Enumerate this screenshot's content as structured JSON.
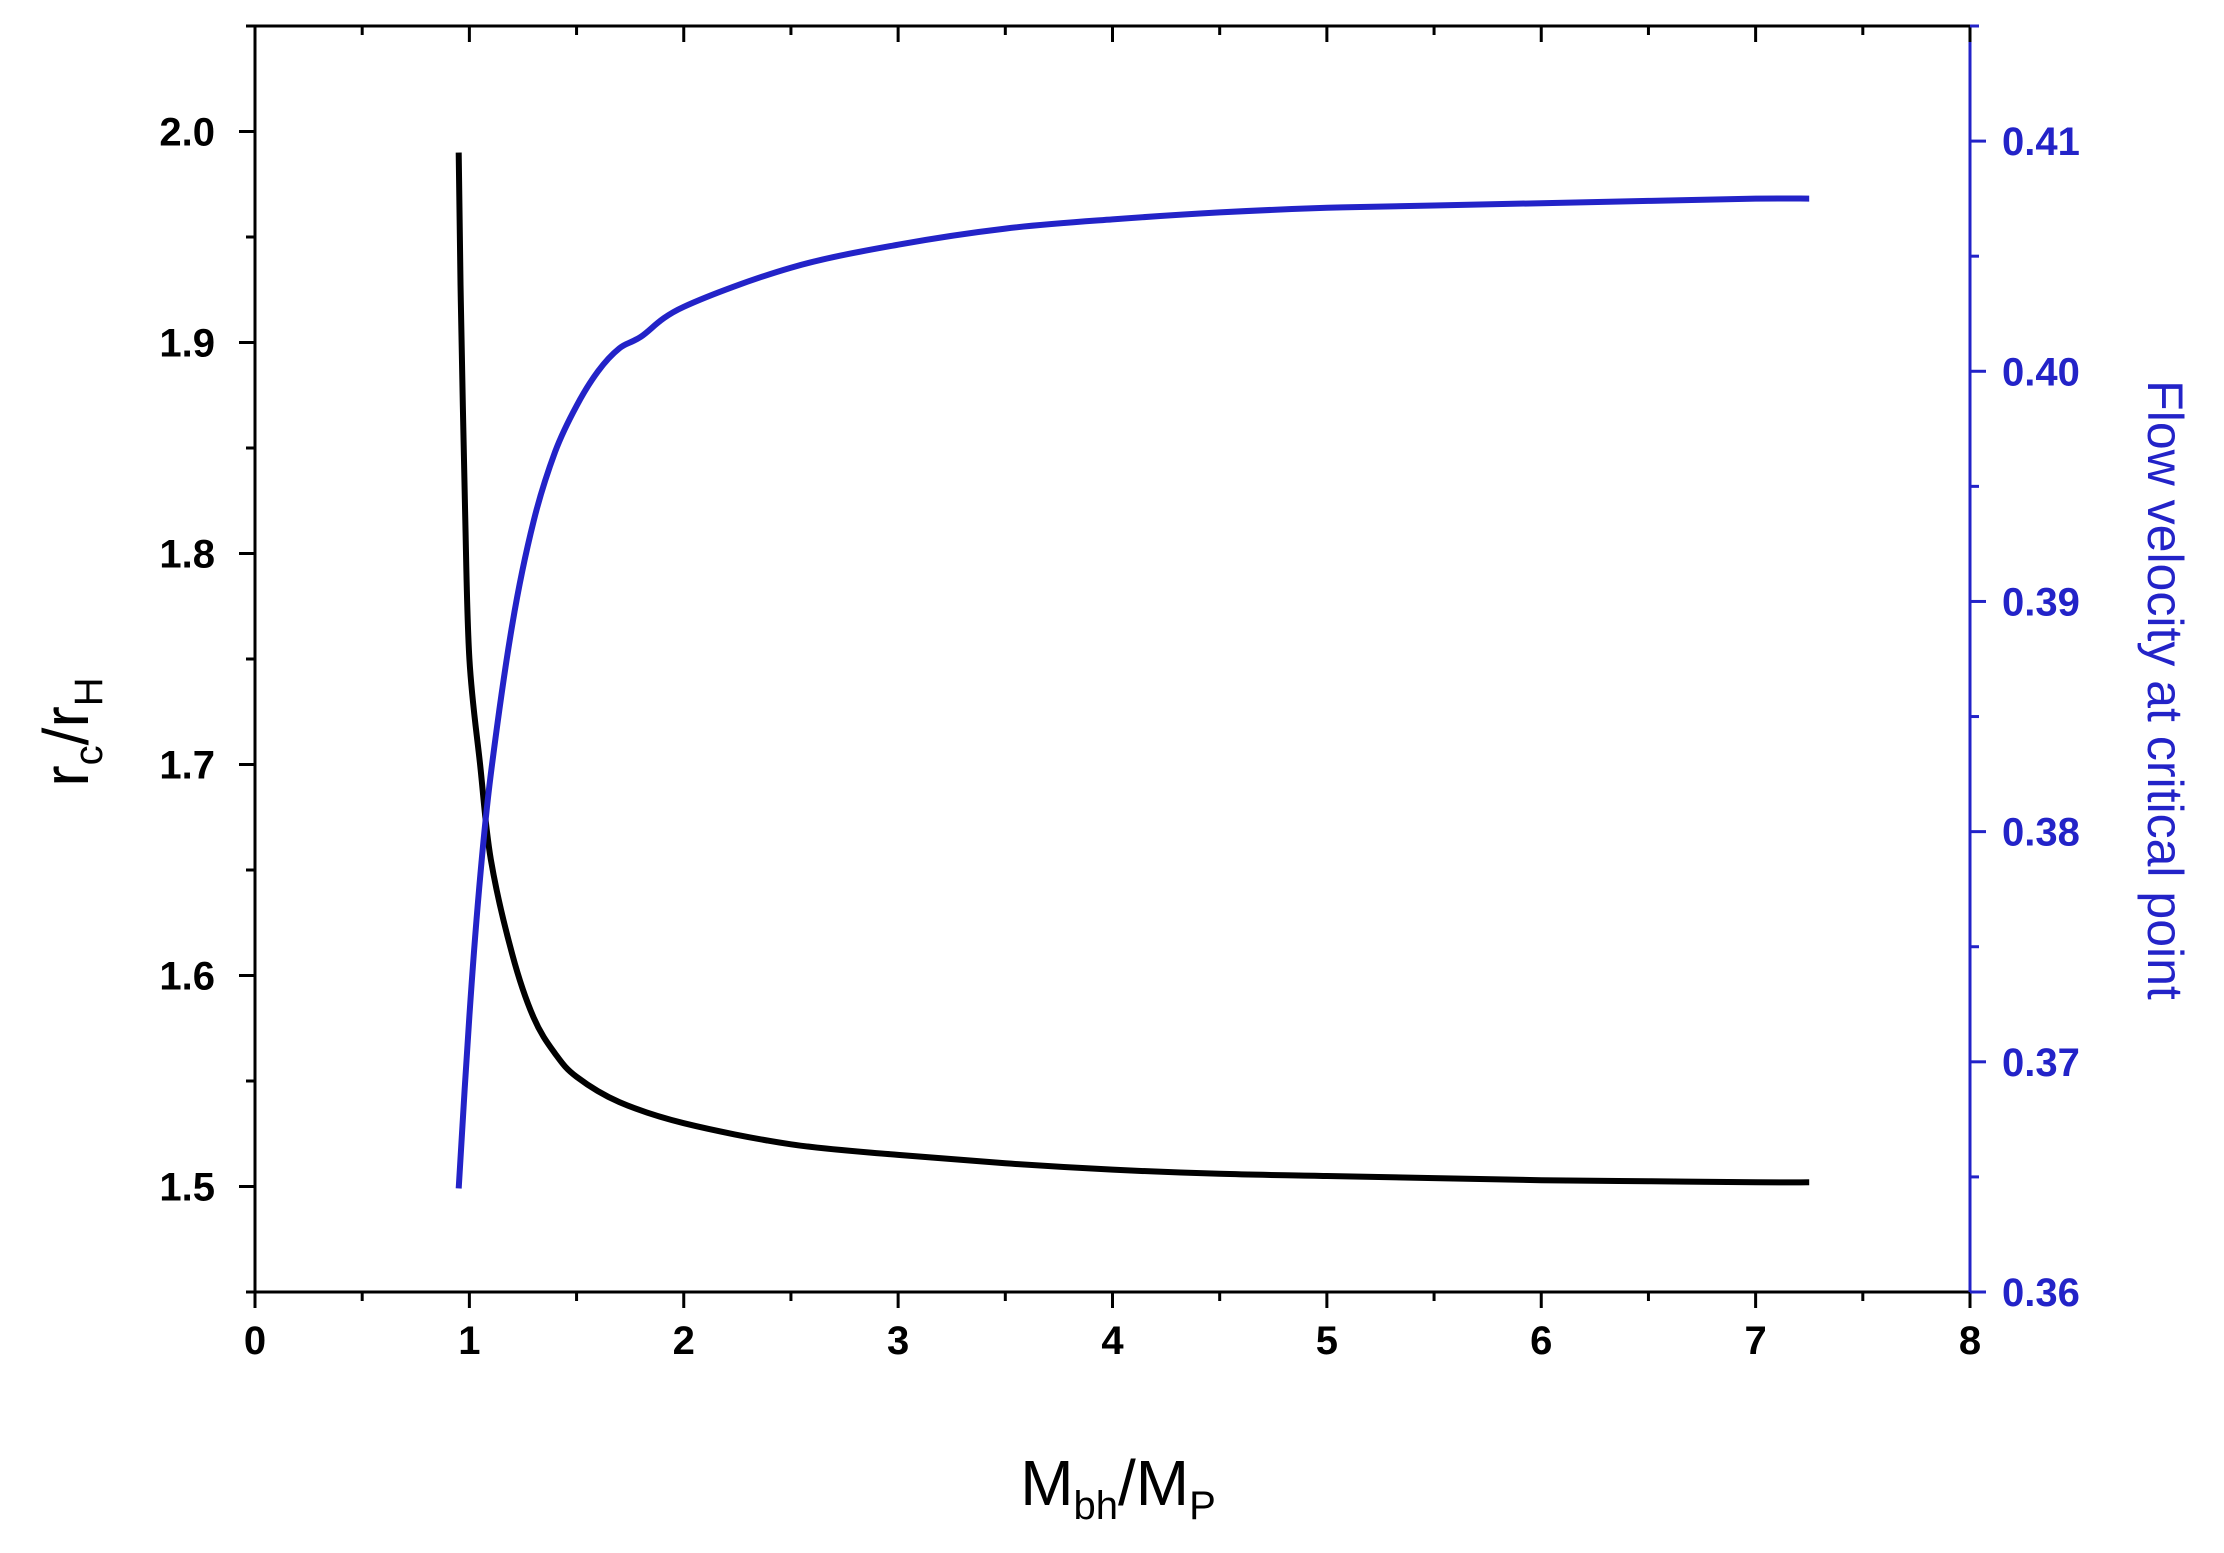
{
  "chart_data": {
    "type": "line",
    "xlabel": {
      "main": "M",
      "sub1": "bh",
      "sep": "/M",
      "sub2": "P"
    },
    "ylabel_left": {
      "main": "r",
      "sub1": "c",
      "sep": "/r",
      "sub2": "H"
    },
    "ylabel_right": "Flow velocity at critical point",
    "xlim": [
      0,
      8
    ],
    "ylim_left": [
      1.45,
      2.05
    ],
    "ylim_right": [
      0.36,
      0.415
    ],
    "x_ticks": [
      0,
      1,
      2,
      3,
      4,
      5,
      6,
      7,
      8
    ],
    "x_tick_labels": [
      "0",
      "1",
      "2",
      "3",
      "4",
      "5",
      "6",
      "7",
      "8"
    ],
    "y_left_ticks": [
      1.5,
      1.6,
      1.7,
      1.8,
      1.9,
      2.0
    ],
    "y_left_tick_labels": [
      "1.5",
      "1.6",
      "1.7",
      "1.8",
      "1.9",
      "2.0"
    ],
    "y_right_ticks": [
      0.36,
      0.37,
      0.38,
      0.39,
      0.4,
      0.41
    ],
    "y_right_tick_labels": [
      "0.36",
      "0.37",
      "0.38",
      "0.39",
      "0.40",
      "0.41"
    ],
    "grid": false,
    "series": [
      {
        "axis": "left",
        "color": "#000000",
        "x": [
          0.95,
          0.96,
          0.98,
          1.0,
          1.05,
          1.1,
          1.2,
          1.3,
          1.4,
          1.5,
          1.7,
          2.0,
          2.5,
          3.0,
          3.5,
          4.0,
          4.5,
          5.0,
          5.5,
          6.0,
          6.5,
          7.0,
          7.25
        ],
        "y": [
          1.99,
          1.92,
          1.82,
          1.75,
          1.7,
          1.655,
          1.61,
          1.58,
          1.563,
          1.552,
          1.54,
          1.53,
          1.52,
          1.515,
          1.511,
          1.508,
          1.506,
          1.505,
          1.504,
          1.503,
          1.5025,
          1.502,
          1.502
        ]
      },
      {
        "axis": "right",
        "color": "#2323c8",
        "x": [
          0.95,
          1.0,
          1.05,
          1.1,
          1.2,
          1.3,
          1.4,
          1.5,
          1.6,
          1.7,
          1.8,
          2.0,
          2.5,
          3.0,
          3.5,
          4.0,
          4.5,
          5.0,
          5.5,
          6.0,
          6.5,
          7.0,
          7.25
        ],
        "y": [
          0.3645,
          0.372,
          0.378,
          0.3825,
          0.389,
          0.3935,
          0.3965,
          0.3985,
          0.4,
          0.401,
          0.4015,
          0.4028,
          0.4045,
          0.4055,
          0.4062,
          0.4066,
          0.4069,
          0.4071,
          0.4072,
          0.4073,
          0.4074,
          0.4075,
          0.4075
        ]
      }
    ],
    "colors": {
      "left_axis": "#000000",
      "right_axis": "#2323c8"
    }
  }
}
